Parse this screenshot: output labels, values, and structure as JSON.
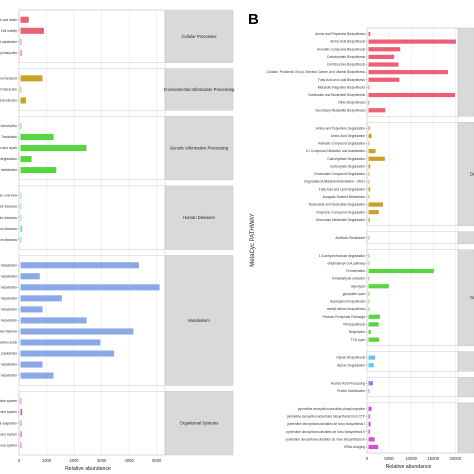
{
  "chart_data": [
    {
      "panel": "A",
      "type": "bar",
      "orientation": "horizontal",
      "xlabel": "Relative abundance",
      "xticks": [
        "0",
        "1000",
        "2000",
        "3000",
        "4000",
        "5000"
      ],
      "xlim": [
        0,
        5300
      ],
      "grid": true,
      "groups": [
        {
          "name": "Cellular Processes",
          "color": "#ec5f74",
          "rows": [
            {
              "label": "ell growth and death",
              "value": 300
            },
            {
              "label": "Cell motility",
              "value": 850
            },
            {
              "label": "ransport and catabolism",
              "value": 30
            },
            {
              "label": "Cellular community - prokaryotes",
              "value": 40
            }
          ]
        },
        {
          "name": "Environmental Information Processing",
          "color": "#c9a227",
          "rows": [
            {
              "label": "Membrane transport",
              "value": 800
            },
            {
              "label": "Signaling molecules and interaction",
              "value": 20
            },
            {
              "label": "Signal transduction",
              "value": 200
            }
          ]
        },
        {
          "name": "Genetic Information Processing",
          "color": "#58d63e",
          "rows": [
            {
              "label": "Transcription",
              "value": 20
            },
            {
              "label": "Translation",
              "value": 1200
            },
            {
              "label": "Replication and repair",
              "value": 2400
            },
            {
              "label": "Folding, sorting and degradation",
              "value": 400
            },
            {
              "label": "Nucleotide metabolism",
              "value": 1300
            }
          ]
        },
        {
          "name": "Human Diseases",
          "color": "#5ed4c4",
          "rows": [
            {
              "label": "Cancer: overview",
              "value": 5
            },
            {
              "label": "Cardiovascular diseases",
              "value": 5
            },
            {
              "label": "Endocrine and metabolic diseases",
              "value": 5
            },
            {
              "label": "Infectious diseases",
              "value": 60
            },
            {
              "label": "Neurodegenerative diseases",
              "value": 5
            }
          ]
        },
        {
          "name": "Metabolism",
          "color": "#8aa9e6",
          "rows": [
            {
              "label": "Amino acid metabolism",
              "value": 4300
            },
            {
              "label": "Biosynthesis of other secondary metabolites",
              "value": 700
            },
            {
              "label": "Carbohydrate metabolism",
              "value": 5050
            },
            {
              "label": "Energy metabolism",
              "value": 1500
            },
            {
              "label": "Glycan biosynthesis and metabolism",
              "value": 800
            },
            {
              "label": "Lipid metabolism",
              "value": 2400
            },
            {
              "label": "Metabolism of cofactors and vitamins",
              "value": 4100
            },
            {
              "label": "Metabolism of other amino acids",
              "value": 2900
            },
            {
              "label": "Metabolism of terpenoids and polyketides",
              "value": 3400
            },
            {
              "label": "Nucleotide metabolism",
              "value": 800
            },
            {
              "label": "Xenobiotics biodegradation and metabolism",
              "value": 1200
            }
          ]
        },
        {
          "name": "Organismal Systems",
          "color": "#cf52c9",
          "rows": [
            {
              "label": "Digestive system",
              "value": 10
            },
            {
              "label": "Endocrine system",
              "value": 60
            },
            {
              "label": "Environmental adaptation",
              "value": 10
            },
            {
              "label": "Immune system",
              "value": 40
            },
            {
              "label": "Nervous system",
              "value": 10
            }
          ]
        }
      ]
    },
    {
      "panel": "B",
      "type": "bar",
      "orientation": "horizontal",
      "xlabel": "Relative abundance",
      "ylabel": "MetaCyc PATHWAY",
      "xticks": [
        "0",
        "5000",
        "10000",
        "15000",
        "20000"
      ],
      "xlim": [
        0,
        20600
      ],
      "grid": true,
      "groups": [
        {
          "name": "",
          "color": "#ec5f74",
          "rows": [
            {
              "label": "Amine and Polyamine Biosynthesis",
              "value": 400
            },
            {
              "label": "Amino Acid Biosynthesis",
              "value": 19800
            },
            {
              "label": "Aromatic Compound Biosynthesis",
              "value": 7200
            },
            {
              "label": "Carbohydrate Biosynthesis",
              "value": 5800
            },
            {
              "label": "Cell Structure Biosynthesis",
              "value": 6800
            },
            {
              "label": "Cofactor, Prosthetic Group, Electron Carrier, and Vitamin Biosynthesis",
              "value": 18000
            },
            {
              "label": "Fatty Acid and Lipid Biosynthesis",
              "value": 7000
            },
            {
              "label": "Metabolic Regulator Biosynthesis",
              "value": 200
            },
            {
              "label": "Nucleoside and Nucleotide Biosynthesis",
              "value": 19600
            },
            {
              "label": "Other Biosynthesis",
              "value": 100
            },
            {
              "label": "Secondary Metabolite Biosynthesis",
              "value": 3800
            }
          ]
        },
        {
          "name": "De",
          "color": "#c9a227",
          "rows": [
            {
              "label": "Amine and Polyamine Degradation",
              "value": 300
            },
            {
              "label": "Amino Acid Degradation",
              "value": 700
            },
            {
              "label": "Aromatic Compound Degradation",
              "value": 100
            },
            {
              "label": "C1 Compound Utilization and Assimilation",
              "value": 1600
            },
            {
              "label": "Carbohydrate Degradation",
              "value": 3700
            },
            {
              "label": "Carboxylate Degradation",
              "value": 400
            },
            {
              "label": "Chlorinated Compound Degradation",
              "value": 100
            },
            {
              "label": "Degradation/Utilization/Assimilation - Other",
              "value": 100
            },
            {
              "label": "Fatty Acid and Lipid Degradation",
              "value": 400
            },
            {
              "label": "Inorganic Nutrient Metabolism",
              "value": 200
            },
            {
              "label": "Nucleoside and Nucleotide Degradation",
              "value": 3300
            },
            {
              "label": "Polymeric Compound Degradation",
              "value": 2300
            },
            {
              "label": "Secondary Metabolite Degradation",
              "value": 300
            }
          ]
        },
        {
          "name": "",
          "color": "#58d63e",
          "rows": [
            {
              "label": "Antibiotic Resistance",
              "value": 100
            }
          ]
        },
        {
          "name": "Genera",
          "color": "#58d63e",
          "rows": [
            {
              "label": "1,5-anhydrofructose degradation",
              "value": 30
            },
            {
              "label": "ethylmalonyl-CoA pathway",
              "value": 50
            },
            {
              "label": "Fermentation",
              "value": 14800
            },
            {
              "label": "formaldehyde oxidation",
              "value": 50
            },
            {
              "label": "Glycolysis",
              "value": 4600
            },
            {
              "label": "glyoxylate cycle",
              "value": 60
            },
            {
              "label": "isopropanol biosynthesis",
              "value": 50
            },
            {
              "label": "methyl ketone biosynthesis",
              "value": 40
            },
            {
              "label": "Pentose Phosphate Pathways",
              "value": 2600
            },
            {
              "label": "Photosynthesis",
              "value": 2300
            },
            {
              "label": "Respiration",
              "value": 500
            },
            {
              "label": "TCA cycle",
              "value": 2400
            }
          ]
        },
        {
          "name": "",
          "color": "#62c8f0",
          "rows": [
            {
              "label": "Glycan Biosynthesis",
              "value": 1500
            },
            {
              "label": "Glycan Degradation",
              "value": 1200
            }
          ]
        },
        {
          "name": "",
          "color": "#9a7cd8",
          "rows": [
            {
              "label": "Nucleic Acid Processing",
              "value": 1000
            },
            {
              "label": "Protein Modification",
              "value": 30
            }
          ]
        },
        {
          "name": "",
          "color": "#cf52c9",
          "rows": [
            {
              "label": "pyrimidine deoxyribonucleotide phosphorylation",
              "value": 700
            },
            {
              "label": "pyrimidine deoxyribonucleotides biosynthesis from CTP",
              "value": 300
            },
            {
              "label": "pyrimidine deoxyribonucleotides de novo biosynthesis I",
              "value": 500
            },
            {
              "label": "pyrimidine deoxyribonucleotides de novo biosynthesis II",
              "value": 300
            },
            {
              "label": "pyrimidine deoxyribonucleotides de novo biosynthesis III",
              "value": 1400
            },
            {
              "label": "tRNA charging",
              "value": 2200
            }
          ]
        }
      ]
    }
  ],
  "panel_label_b": "B"
}
